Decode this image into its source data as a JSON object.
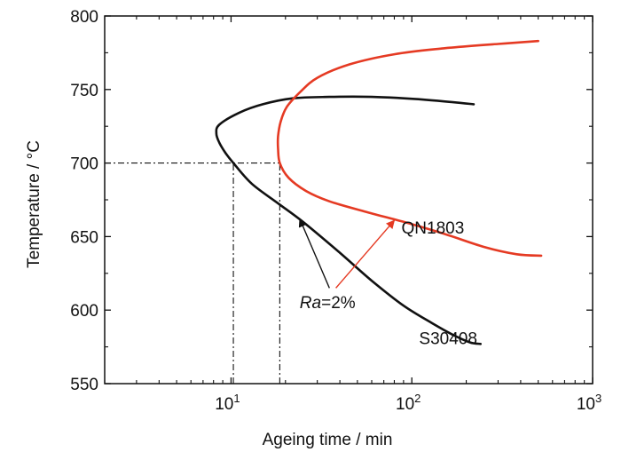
{
  "chart_data": {
    "type": "line",
    "title": "",
    "xlabel": "Ageing time / min",
    "ylabel": "Temperature / °C",
    "xscale": "log",
    "xlim": [
      2,
      1000
    ],
    "ylim": [
      550,
      800
    ],
    "grid": false,
    "x_ticks": [
      {
        "value": 10,
        "base": "10",
        "exp": "1"
      },
      {
        "value": 100,
        "base": "10",
        "exp": "2"
      },
      {
        "value": 1000,
        "base": "10",
        "exp": "3"
      }
    ],
    "y_ticks": [
      {
        "value": 550,
        "label": "550"
      },
      {
        "value": 600,
        "label": "600"
      },
      {
        "value": 650,
        "label": "650"
      },
      {
        "value": 700,
        "label": "700"
      },
      {
        "value": 750,
        "label": "750"
      },
      {
        "value": 800,
        "label": "800"
      }
    ],
    "series": [
      {
        "name": "S30408",
        "color": "#111111",
        "points": [
          [
            220,
            740
          ],
          [
            120,
            743
          ],
          [
            60,
            745
          ],
          [
            35,
            745
          ],
          [
            22,
            744
          ],
          [
            15,
            740
          ],
          [
            11,
            734
          ],
          [
            8.6,
            726
          ],
          [
            8.3,
            720
          ],
          [
            8.6,
            714
          ],
          [
            9.3,
            707
          ],
          [
            10.3,
            700
          ],
          [
            13,
            686
          ],
          [
            18,
            673
          ],
          [
            25,
            660
          ],
          [
            40,
            639
          ],
          [
            60,
            620
          ],
          [
            90,
            603
          ],
          [
            130,
            591
          ],
          [
            170,
            583
          ],
          [
            210,
            578
          ],
          [
            240,
            577
          ]
        ]
      },
      {
        "name": "QN1803",
        "color": "#e53a23",
        "points": [
          [
            500,
            783
          ],
          [
            300,
            781
          ],
          [
            150,
            778
          ],
          [
            80,
            774
          ],
          [
            45,
            767
          ],
          [
            30,
            758
          ],
          [
            24,
            748
          ],
          [
            20.3,
            738
          ],
          [
            18.8,
            728
          ],
          [
            18.2,
            718
          ],
          [
            18.2,
            710
          ],
          [
            18.6,
            700
          ],
          [
            20.8,
            690
          ],
          [
            26,
            681
          ],
          [
            35,
            674
          ],
          [
            55,
            667
          ],
          [
            90,
            660
          ],
          [
            150,
            652
          ],
          [
            250,
            643
          ],
          [
            380,
            638
          ],
          [
            520,
            637
          ]
        ]
      }
    ],
    "reference_lines": [
      {
        "type": "h",
        "y": 700,
        "x_from": 2,
        "x_to": 18.6
      },
      {
        "type": "v",
        "x": 10.3,
        "y_from": 550,
        "y_to": 700
      },
      {
        "type": "v",
        "x": 18.6,
        "y_from": 550,
        "y_to": 700
      }
    ],
    "annotations": [
      {
        "id": "s30408-label",
        "text": "S30408",
        "x": 230,
        "y": 577
      },
      {
        "id": "qn1803-label",
        "text": "QN1803",
        "x": 195,
        "y": 652
      }
    ],
    "ra_annotation": {
      "italic_part": "Ra",
      "rest": "=2%",
      "x": 36,
      "y": 605,
      "arrows": [
        {
          "color": "#111111",
          "from": [
            35,
            615
          ],
          "to": [
            24,
            662
          ]
        },
        {
          "color": "#e53a23",
          "from": [
            38,
            615
          ],
          "to": [
            80,
            661
          ]
        }
      ]
    }
  }
}
